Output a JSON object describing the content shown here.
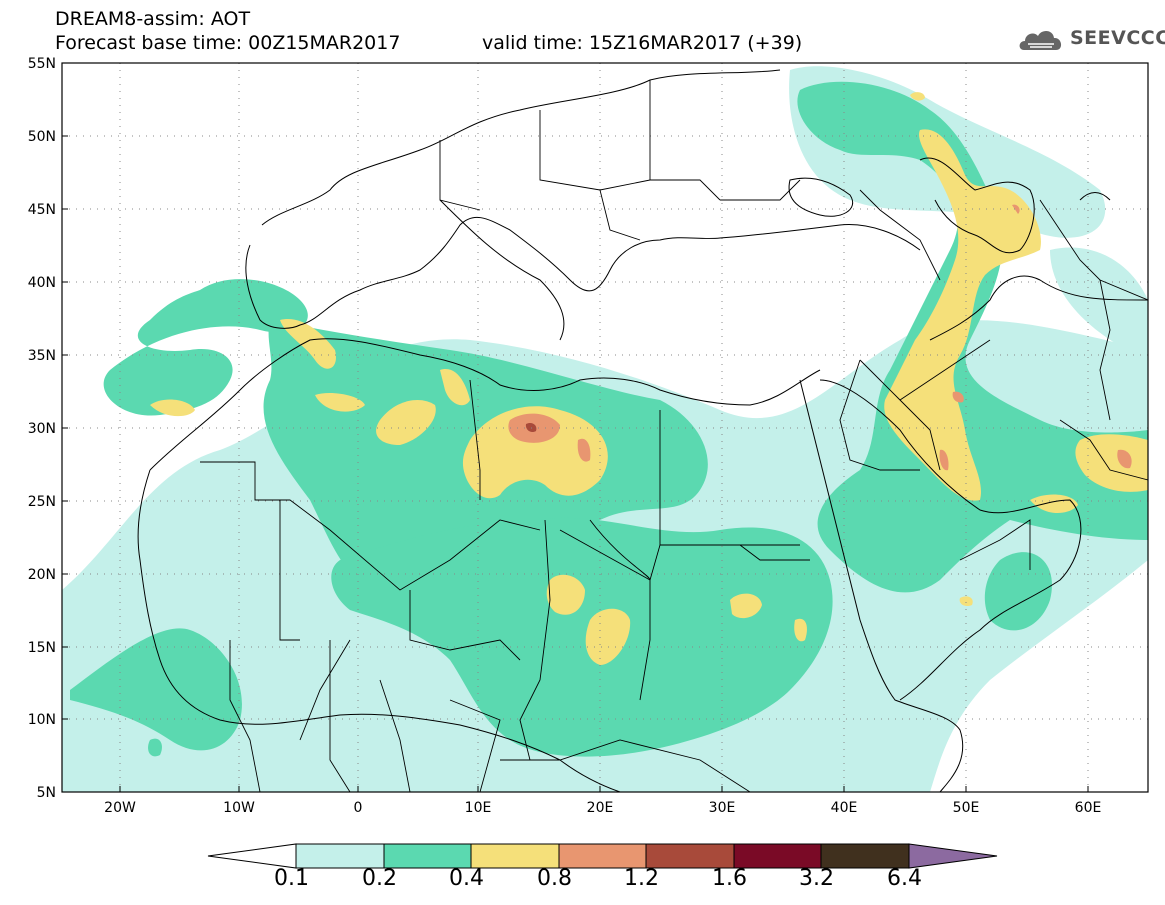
{
  "header": {
    "title": "DREAM8-assim: AOT",
    "base_time": "Forecast base time: 00Z15MAR2017",
    "valid_time": "valid time: 15Z16MAR2017 (+39)"
  },
  "logo": {
    "text": "SEEVCCC",
    "icon": "cloud-logo-icon"
  },
  "axes": {
    "lon_labels": [
      "20W",
      "10W",
      "0",
      "10E",
      "20E",
      "30E",
      "40E",
      "50E",
      "60E"
    ],
    "lat_labels": [
      "55N",
      "50N",
      "45N",
      "40N",
      "35N",
      "30N",
      "25N",
      "20N",
      "15N",
      "10N",
      "5N"
    ]
  },
  "colorbar": {
    "labels": [
      "0.1",
      "0.2",
      "0.4",
      "0.8",
      "1.2",
      "1.6",
      "3.2",
      "6.4"
    ],
    "colors": [
      "#c4f0ea",
      "#5bd9b0",
      "#f5e07a",
      "#e89670",
      "#a84a3a",
      "#7a0a26",
      "#40301e",
      "#8c6aa0"
    ]
  },
  "map_colors": {
    "land_lines": "#000000",
    "grid": "#666666"
  }
}
